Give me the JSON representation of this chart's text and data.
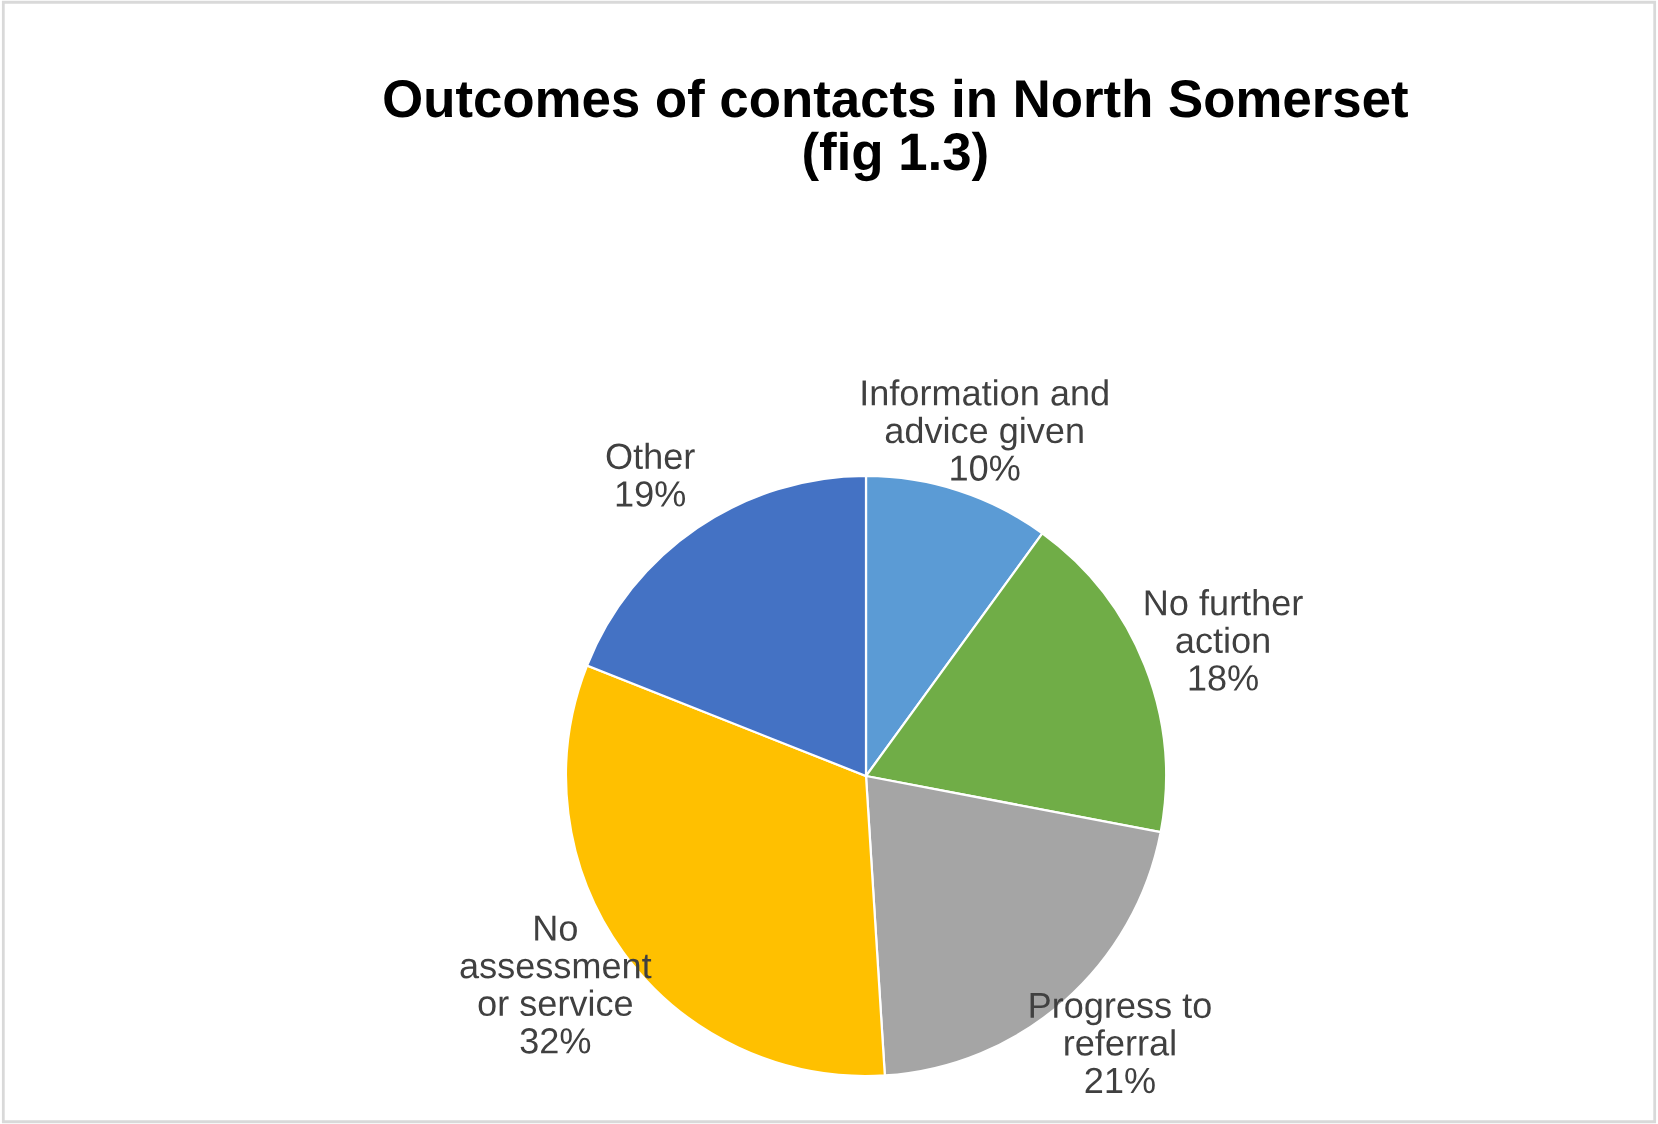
{
  "chart_data": {
    "type": "pie",
    "title": "Outcomes of contacts in North Somerset\n(fig 1.3)",
    "categories": [
      "Information and\nadvice given",
      "No further\naction",
      "Progress to\nreferral",
      "No\nassessment\nor service",
      "Other"
    ],
    "values": [
      10,
      18,
      21,
      32,
      19
    ],
    "value_labels": [
      "10%",
      "18%",
      "21%",
      "32%",
      "19%"
    ],
    "colors": [
      "#5b9bd5",
      "#70ad47",
      "#a5a5a5",
      "#ffc000",
      "#4472c4"
    ],
    "legend": false
  }
}
